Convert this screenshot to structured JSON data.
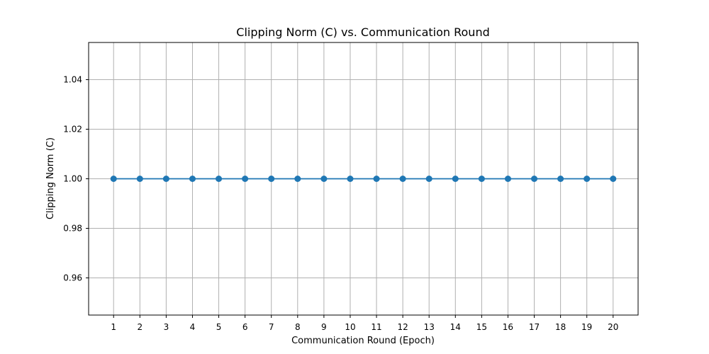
{
  "chart_data": {
    "type": "line",
    "title": "Clipping Norm (C) vs. Communication Round",
    "xlabel": "Communication Round (Epoch)",
    "ylabel": "Clipping Norm (C)",
    "x": [
      1,
      2,
      3,
      4,
      5,
      6,
      7,
      8,
      9,
      10,
      11,
      12,
      13,
      14,
      15,
      16,
      17,
      18,
      19,
      20
    ],
    "series": [
      {
        "values": [
          1.0,
          1.0,
          1.0,
          1.0,
          1.0,
          1.0,
          1.0,
          1.0,
          1.0,
          1.0,
          1.0,
          1.0,
          1.0,
          1.0,
          1.0,
          1.0,
          1.0,
          1.0,
          1.0,
          1.0
        ],
        "color": "#1f77b4",
        "marker": "circle"
      }
    ],
    "xlim": [
      0.05,
      20.95
    ],
    "ylim": [
      0.945,
      1.055
    ],
    "xticks": [
      "1",
      "2",
      "3",
      "4",
      "5",
      "6",
      "7",
      "8",
      "9",
      "10",
      "11",
      "12",
      "13",
      "14",
      "15",
      "16",
      "17",
      "18",
      "19",
      "20"
    ],
    "yticks": [
      "0.96",
      "0.98",
      "1.00",
      "1.02",
      "1.04"
    ],
    "grid": true,
    "grid_color": "#b0b0b0"
  }
}
